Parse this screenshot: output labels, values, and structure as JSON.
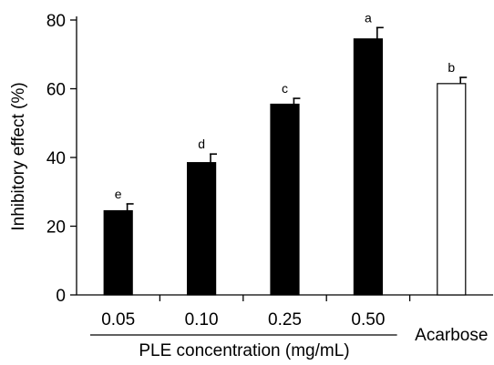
{
  "chart_data": {
    "type": "bar",
    "title": "",
    "ylabel": "Inhibitory effect (%)",
    "xlabel": "PLE concentration (mg/mL)",
    "ylim": [
      0,
      80
    ],
    "yticks": [
      0,
      20,
      40,
      60,
      80
    ],
    "grid": false,
    "categories": [
      "0.05",
      "0.10",
      "0.25",
      "0.50",
      "Acarbose"
    ],
    "values": [
      24.5,
      38.5,
      55.5,
      74.5,
      61.5
    ],
    "errors": [
      2.0,
      2.5,
      1.7,
      3.3,
      1.8
    ],
    "significance": [
      "e",
      "d",
      "c",
      "a",
      "b"
    ],
    "group_bracket": {
      "label": "PLE concentration (mg/mL)",
      "categories": [
        "0.05",
        "0.10",
        "0.25",
        "0.50"
      ]
    },
    "colors": {
      "sample_bars": "#000000",
      "control_bar": "#ffffff",
      "axis": "#000000"
    }
  }
}
